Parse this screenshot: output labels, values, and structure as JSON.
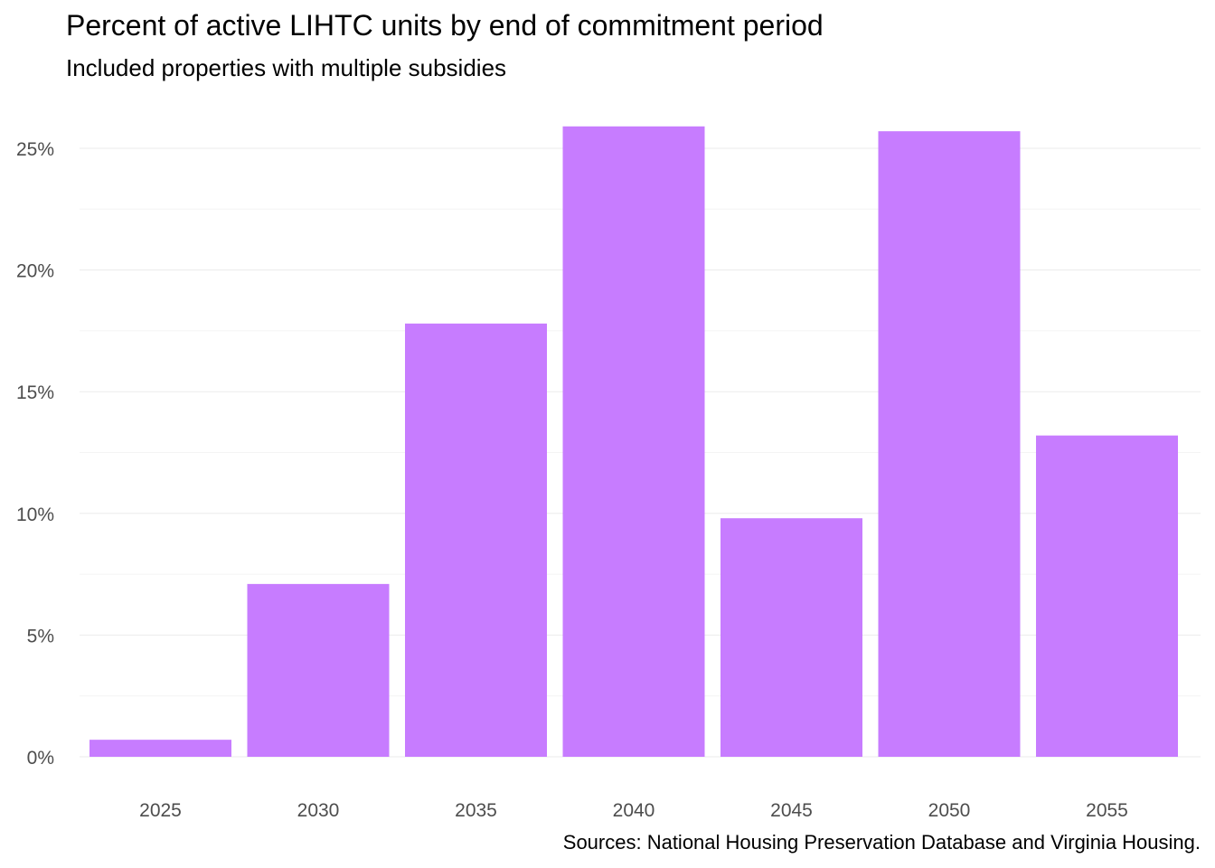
{
  "chart_data": {
    "type": "bar",
    "title": "Percent of active LIHTC units by end of commitment period",
    "subtitle": "Included properties with multiple subsidies",
    "caption": "Sources: National Housing Preservation Database and Virginia Housing.",
    "xlabel": "",
    "ylabel": "",
    "categories": [
      "2025",
      "2030",
      "2035",
      "2040",
      "2045",
      "2050",
      "2055"
    ],
    "values": [
      0.7,
      7.1,
      17.8,
      25.9,
      9.8,
      25.7,
      13.2
    ],
    "ylim": [
      0,
      25
    ],
    "yticks": [
      0,
      5,
      10,
      15,
      20,
      25
    ],
    "ytick_labels": [
      "0%",
      "5%",
      "10%",
      "15%",
      "20%",
      "25%"
    ],
    "grid": true,
    "legend": "none",
    "bar_color": "#C77CFF",
    "grid_color": "#EBEBEB",
    "tick_label_color": "#4D4D4D"
  }
}
